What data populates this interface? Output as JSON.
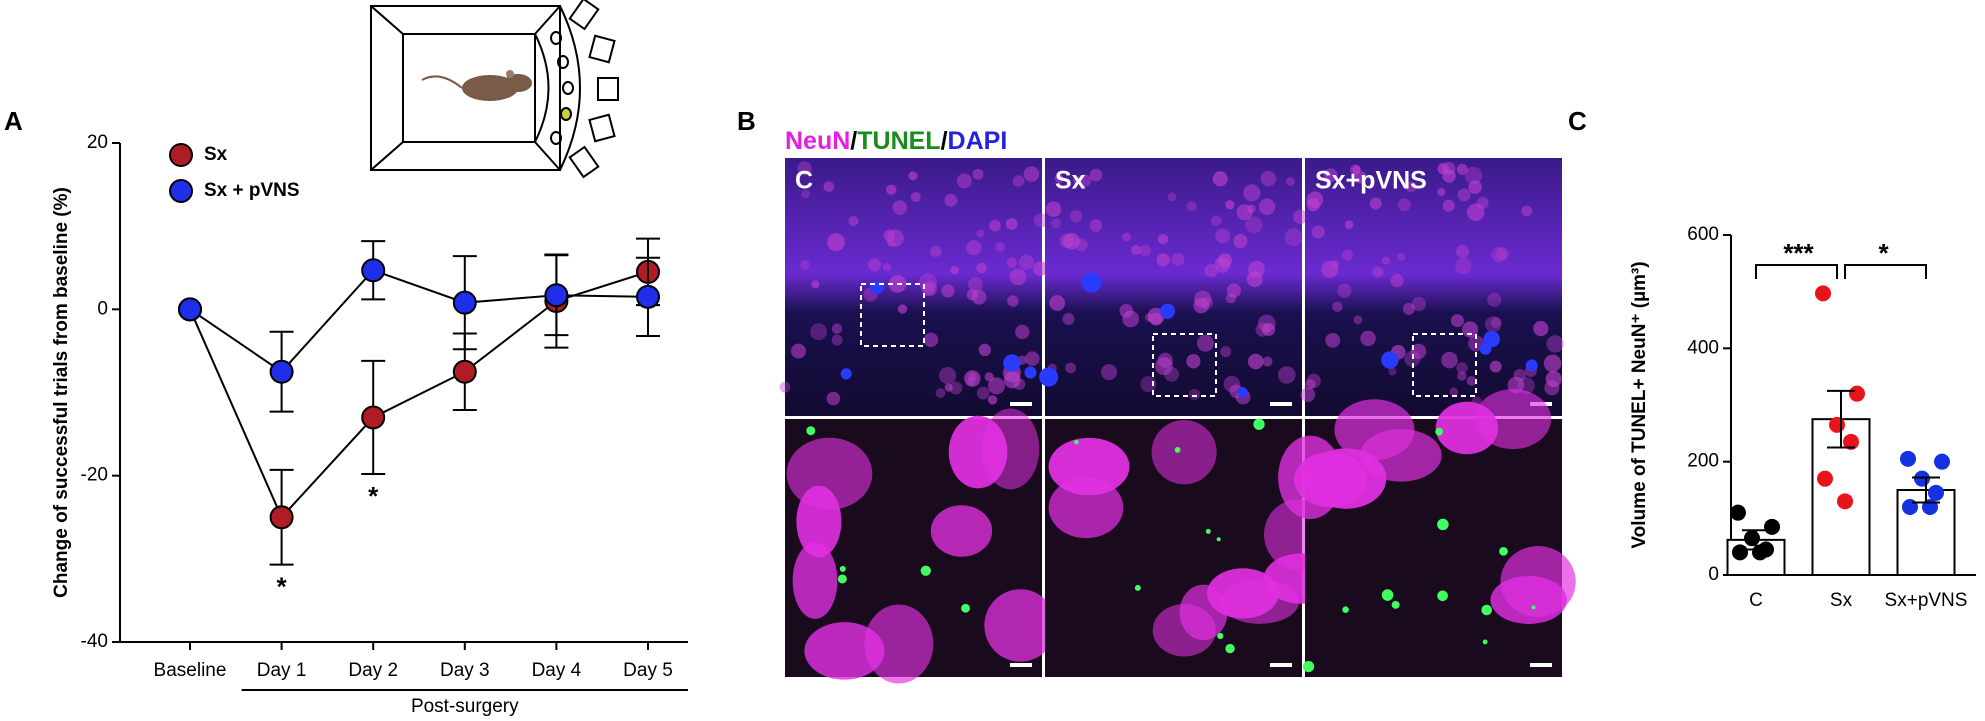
{
  "panels": {
    "a": "A",
    "b": "B",
    "c": "C"
  },
  "images": {
    "stain": [
      {
        "text": "NeuN",
        "color": "#e41fe0"
      },
      {
        "text": "/",
        "color": "#000000"
      },
      {
        "text": "TUNEL",
        "color": "#1a8c1a"
      },
      {
        "text": "/",
        "color": "#000000"
      },
      {
        "text": "DAPI",
        "color": "#2222e0"
      }
    ],
    "columns": [
      "C",
      "Sx",
      "Sx+pVNS"
    ]
  },
  "chart_data": [
    {
      "type": "line",
      "ylabel": "Change of successful trials from baseline (%)",
      "categories": [
        "Baseline",
        "Day 1",
        "Day 2",
        "Day 3",
        "Day 4",
        "Day 5"
      ],
      "group_label": "Post-surgery",
      "ylim": [
        -40,
        20
      ],
      "yticks": [
        -40,
        -20,
        0,
        20
      ],
      "series": [
        {
          "name": "Sx",
          "color": "#b01c24",
          "values": [
            0,
            -25,
            -13,
            -7.5,
            1,
            4.5
          ],
          "errors": [
            0,
            5.7,
            6.8,
            4.6,
            5.6,
            4
          ]
        },
        {
          "name": "Sx + pVNS",
          "color": "#1f2ee8",
          "values": [
            0,
            -7.5,
            4.7,
            0.8,
            1.7,
            1.5
          ],
          "errors": [
            0,
            4.8,
            3.5,
            5.6,
            4.8,
            4.7
          ]
        }
      ],
      "significance": [
        null,
        "*",
        "*",
        null,
        null,
        null
      ]
    },
    {
      "type": "bar",
      "ylabel": "Volume of TUNEL+ NeuN⁺ (µm³)",
      "categories": [
        "C",
        "Sx",
        "Sx+pVNS"
      ],
      "values": [
        62,
        275,
        150
      ],
      "errors": [
        17,
        50,
        22
      ],
      "points": [
        [
          110,
          85,
          65,
          45,
          40,
          40
        ],
        [
          497,
          320,
          265,
          235,
          170,
          130
        ],
        [
          205,
          200,
          170,
          145,
          120,
          120
        ]
      ],
      "point_colors": [
        "#000000",
        "#e8141a",
        "#1432e0"
      ],
      "ylim": [
        0,
        600
      ],
      "yticks": [
        0,
        200,
        400,
        600
      ],
      "brackets": [
        {
          "label": "***",
          "between": [
            "C",
            "Sx"
          ]
        },
        {
          "label": "*",
          "between": [
            "Sx",
            "Sx+pVNS"
          ]
        }
      ]
    }
  ]
}
